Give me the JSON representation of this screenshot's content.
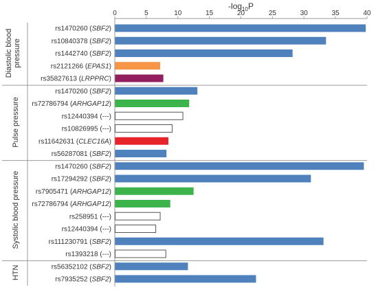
{
  "chart_data": {
    "type": "bar",
    "orientation": "horizontal",
    "title": "",
    "xlabel": "-log",
    "xlabel_subscript": "10",
    "xlabel_suffix": "P",
    "xlim": [
      0,
      40
    ],
    "xticks": [
      0,
      5,
      10,
      15,
      20,
      25,
      30,
      35,
      40
    ],
    "axis_position": "top",
    "grid": false,
    "legend": "none",
    "colors": {
      "SBF2": "#4f81bd",
      "EPAS1": "#f79646",
      "LRPPRC": "#92205f",
      "ARHGAP12": "#3cb44b",
      "CLEC16A": "#e8242b",
      "none": "#ffffff",
      "none_outline": "#555555"
    },
    "groups": [
      {
        "label_lines": [
          "Diastolic blood",
          "pressure"
        ],
        "rows": [
          {
            "snp": "rs1470260",
            "gene": "SBF2",
            "value": 39.8
          },
          {
            "snp": "rs10840378",
            "gene": "SBF2",
            "value": 33.5
          },
          {
            "snp": "rs1442740",
            "gene": "SBF2",
            "value": 28.2
          },
          {
            "snp": "rs2121266",
            "gene": "EPAS1",
            "value": 7.2
          },
          {
            "snp": "rs35827613",
            "gene": "LRPPRC",
            "value": 7.7
          }
        ]
      },
      {
        "label_lines": [
          "Pulse pressure"
        ],
        "rows": [
          {
            "snp": "rs1470260",
            "gene": "SBF2",
            "value": 13.1
          },
          {
            "snp": "rs72786794",
            "gene": "ARHGAP12",
            "value": 11.8
          },
          {
            "snp": "rs12440394",
            "gene": "---",
            "value": 10.8
          },
          {
            "snp": "rs10826995",
            "gene": "---",
            "value": 9.1
          },
          {
            "snp": "rs11642631",
            "gene": "CLEC16A",
            "value": 8.5
          },
          {
            "snp": "rs56287081",
            "gene": "SBF2",
            "value": 8.2
          }
        ]
      },
      {
        "label_lines": [
          "Systolic blood pressure"
        ],
        "rows": [
          {
            "snp": "rs1470260",
            "gene": "SBF2",
            "value": 39.5
          },
          {
            "snp": "rs17294292",
            "gene": "SBF2",
            "value": 31.1
          },
          {
            "snp": "rs7905471",
            "gene": "ARHGAP12",
            "value": 12.5
          },
          {
            "snp": "rs72786794",
            "gene": "ARHGAP12",
            "value": 8.8
          },
          {
            "snp": "rs258951",
            "gene": "---",
            "value": 7.2
          },
          {
            "snp": "rs12440394",
            "gene": "---",
            "value": 6.5
          },
          {
            "snp": "rs111230791",
            "gene": "SBF2",
            "value": 33.1
          },
          {
            "snp": "rs1393218",
            "gene": "---",
            "value": 8.1
          }
        ]
      },
      {
        "label_lines": [
          "HTN"
        ],
        "rows": [
          {
            "snp": "rs56352102",
            "gene": "SBF2",
            "value": 11.6
          },
          {
            "snp": "rs7935252",
            "gene": "SBF2",
            "value": 22.4
          }
        ]
      }
    ]
  }
}
